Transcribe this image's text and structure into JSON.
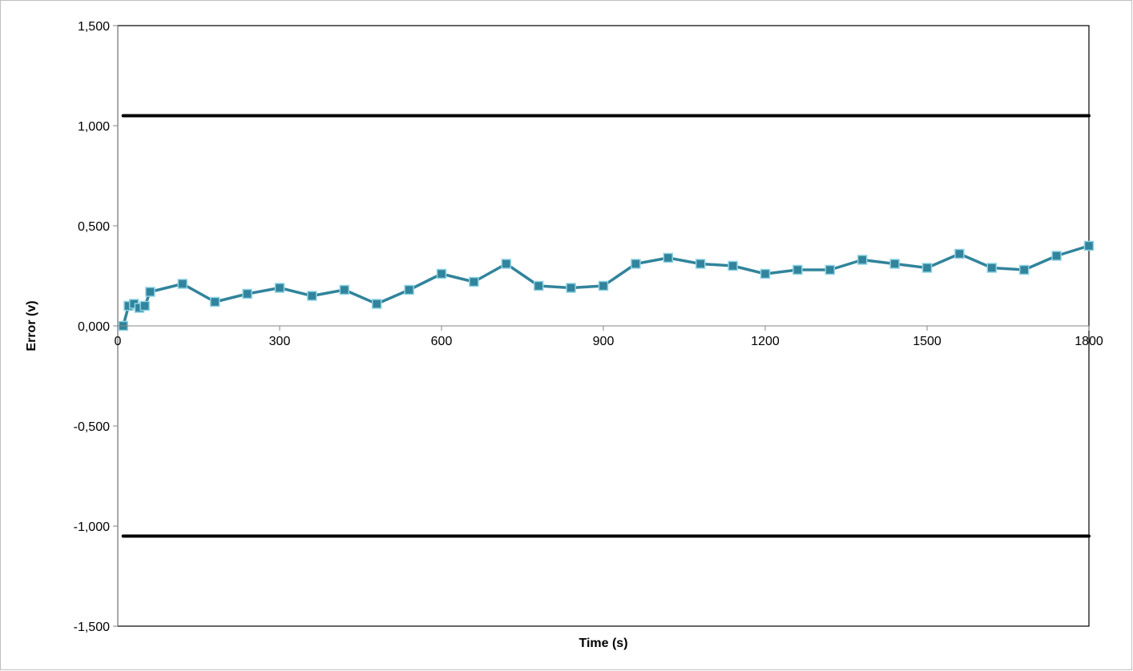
{
  "chart_data": {
    "type": "line",
    "title": "",
    "xlabel": "Time (s)",
    "ylabel": "Error (v)",
    "xlim": [
      0,
      1800
    ],
    "ylim": [
      -1.5,
      1.5
    ],
    "x_ticks": [
      0,
      300,
      600,
      900,
      1200,
      1500,
      1800
    ],
    "x_tick_labels": [
      "0",
      "300",
      "600",
      "900",
      "1200",
      "1500",
      "1800"
    ],
    "y_ticks": [
      1.5,
      1.0,
      0.5,
      0.0,
      -0.5,
      -1.0,
      -1.5
    ],
    "y_tick_labels": [
      "1,500",
      "1,000",
      "0,500",
      "0,000",
      "-0,500",
      "-1,000",
      "-1,500"
    ],
    "grid": false,
    "legend": "none",
    "series": [
      {
        "color": "#31849B",
        "marker": "square",
        "x": [
          10,
          20,
          30,
          40,
          50,
          60,
          120,
          180,
          240,
          300,
          360,
          420,
          480,
          540,
          600,
          660,
          720,
          780,
          840,
          900,
          960,
          1020,
          1080,
          1140,
          1200,
          1260,
          1320,
          1380,
          1440,
          1500,
          1560,
          1620,
          1680,
          1740,
          1800
        ],
        "y": [
          0.0,
          0.1,
          0.11,
          0.09,
          0.1,
          0.17,
          0.21,
          0.12,
          0.16,
          0.19,
          0.15,
          0.18,
          0.11,
          0.18,
          0.26,
          0.22,
          0.31,
          0.2,
          0.19,
          0.2,
          0.31,
          0.34,
          0.31,
          0.3,
          0.26,
          0.28,
          0.28,
          0.33,
          0.31,
          0.29,
          0.36,
          0.29,
          0.28,
          0.35,
          0.4
        ]
      },
      {
        "color": "#000000",
        "marker": "none",
        "x": [
          10,
          1800
        ],
        "y": [
          1.05,
          1.05
        ]
      },
      {
        "color": "#000000",
        "marker": "none",
        "x": [
          10,
          1800
        ],
        "y": [
          -1.05,
          -1.05
        ]
      }
    ]
  }
}
